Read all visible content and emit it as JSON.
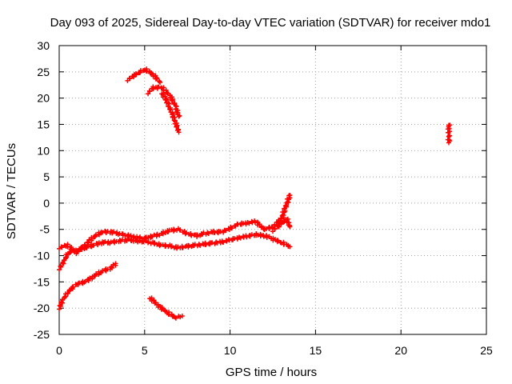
{
  "chart_data": {
    "type": "scatter",
    "title": "Day 093 of 2025, Sidereal Day-to-day VTEC variation (SDTVAR) for receiver mdo1",
    "xlabel": "GPS time / hours",
    "ylabel": "SDTVAR / TECUs",
    "xlim": [
      0,
      25
    ],
    "ylim": [
      -25,
      30
    ],
    "xticks": [
      "0",
      "5",
      "10",
      "15",
      "20",
      "25"
    ],
    "yticks": [
      "30",
      "25",
      "20",
      "15",
      "10",
      "5",
      "0",
      "-5",
      "-10",
      "-15",
      "-20",
      "-25"
    ],
    "grid": true,
    "marker": "plus",
    "color": "#ff0000",
    "series": [
      {
        "values": [
          [
            0,
            -20
          ],
          [
            0.2,
            -18.5
          ],
          [
            0.5,
            -17
          ],
          [
            0.8,
            -16
          ],
          [
            1,
            -15.5
          ],
          [
            1.5,
            -15
          ],
          [
            2,
            -14
          ],
          [
            2.5,
            -13
          ],
          [
            3,
            -12.4
          ],
          [
            3.3,
            -11.5
          ]
        ]
      },
      {
        "values": [
          [
            0,
            -12.5
          ],
          [
            0.3,
            -11
          ],
          [
            0.5,
            -9.5
          ],
          [
            1,
            -9
          ],
          [
            1.5,
            -8.5
          ],
          [
            2,
            -8
          ],
          [
            2.5,
            -7.5
          ],
          [
            3,
            -7.5
          ],
          [
            3.5,
            -7.2
          ],
          [
            4,
            -7
          ],
          [
            4.5,
            -7.2
          ],
          [
            5,
            -7.3
          ],
          [
            5.5,
            -7.6
          ],
          [
            6,
            -8
          ],
          [
            6.5,
            -8.2
          ],
          [
            7,
            -8.5
          ],
          [
            7.5,
            -8.2
          ],
          [
            8,
            -8
          ],
          [
            8.5,
            -7.8
          ],
          [
            9,
            -7.6
          ],
          [
            9.5,
            -7.4
          ],
          [
            10,
            -7
          ],
          [
            10.5,
            -6.6
          ],
          [
            11,
            -6.3
          ],
          [
            11.5,
            -6
          ],
          [
            12,
            -6.2
          ],
          [
            12.5,
            -6.8
          ],
          [
            13,
            -7.5
          ],
          [
            13.5,
            -8.3
          ]
        ]
      },
      {
        "values": [
          [
            0,
            -8.5
          ],
          [
            0.5,
            -8
          ],
          [
            1,
            -9.5
          ],
          [
            1.5,
            -8
          ],
          [
            2,
            -6.5
          ],
          [
            2.5,
            -5.5
          ],
          [
            3,
            -5.5
          ],
          [
            3.5,
            -5.8
          ],
          [
            4,
            -6.2
          ],
          [
            4.5,
            -6.5
          ],
          [
            5,
            -6.7
          ],
          [
            5.5,
            -6.3
          ],
          [
            6,
            -5.8
          ],
          [
            6.5,
            -5.2
          ],
          [
            7,
            -5
          ],
          [
            7.5,
            -5.8
          ],
          [
            8,
            -6.2
          ],
          [
            8.5,
            -5.8
          ],
          [
            9,
            -5.5
          ],
          [
            9.5,
            -5.5
          ],
          [
            10,
            -4.8
          ],
          [
            10.5,
            -4
          ],
          [
            11,
            -3.8
          ],
          [
            11.5,
            -3.5
          ],
          [
            12,
            -5
          ],
          [
            12.5,
            -4.5
          ],
          [
            13,
            -3
          ],
          [
            13.5,
            1.5
          ]
        ]
      },
      {
        "values": [
          [
            12.5,
            -5.2
          ],
          [
            13,
            -4
          ],
          [
            13.3,
            -3
          ],
          [
            13.5,
            -4.5
          ]
        ]
      },
      {
        "values": [
          [
            4,
            23.5
          ],
          [
            4.5,
            24.5
          ],
          [
            5,
            25.5
          ],
          [
            5.5,
            24.5
          ],
          [
            5.9,
            23
          ]
        ]
      },
      {
        "values": [
          [
            5.2,
            21
          ],
          [
            5.5,
            22
          ],
          [
            6,
            22
          ],
          [
            6.5,
            20.5
          ],
          [
            6.8,
            18.5
          ],
          [
            7,
            16.5
          ]
        ]
      },
      {
        "values": [
          [
            6,
            21
          ],
          [
            6.3,
            19.5
          ],
          [
            6.6,
            17
          ],
          [
            6.8,
            15.5
          ],
          [
            7,
            13.5
          ]
        ]
      },
      {
        "values": [
          [
            5.3,
            -18
          ],
          [
            5.8,
            -19.5
          ],
          [
            6.3,
            -20.8
          ],
          [
            6.8,
            -21.8
          ],
          [
            7.2,
            -21.5
          ]
        ]
      },
      {
        "values": [
          [
            22.8,
            15
          ],
          [
            22.8,
            12.5
          ],
          [
            22.8,
            11.5
          ]
        ]
      }
    ]
  }
}
